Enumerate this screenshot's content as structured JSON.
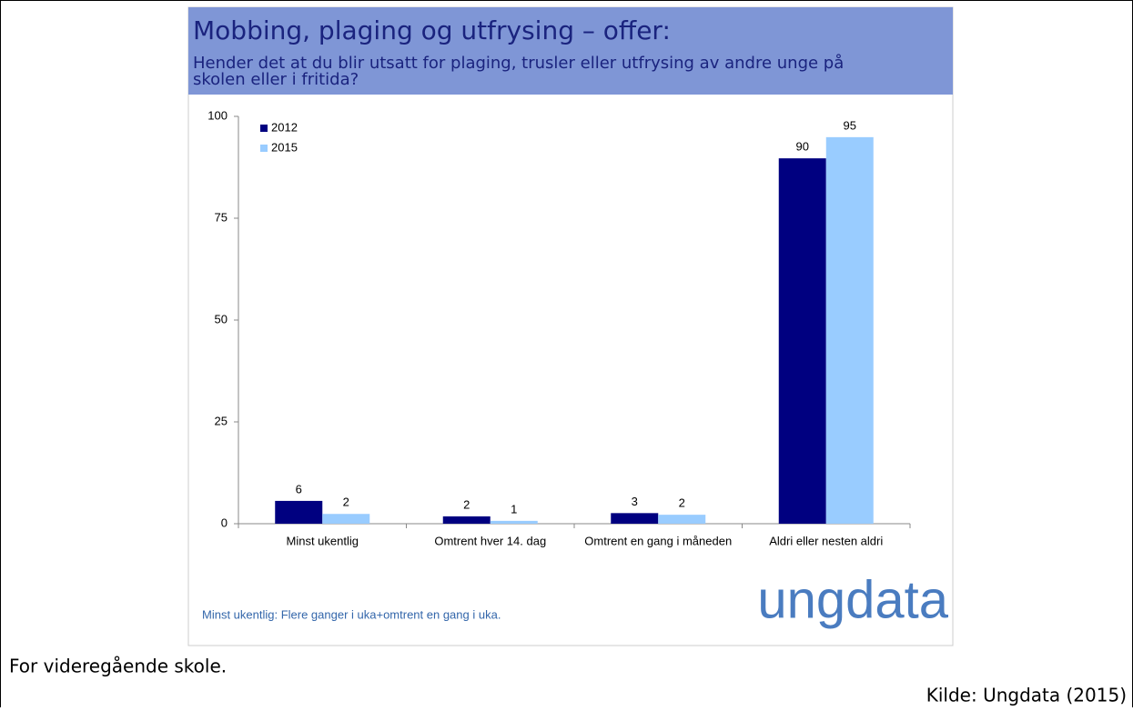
{
  "chart_data": {
    "type": "bar",
    "title": "Mobbing, plaging og utfrysing – offer:",
    "subtitle": [
      "Hender det at du blir utsatt for plaging, trusler eller utfrysing av andre unge på",
      "skolen eller i fritida?"
    ],
    "categories": [
      "Minst ukentlig",
      "Omtrent hver 14. dag",
      "Omtrent en gang i måneden",
      "Aldri eller nesten aldri"
    ],
    "series": [
      {
        "name": "2012",
        "color": "#000080",
        "values": [
          5.6,
          1.8,
          2.6,
          89.7
        ],
        "value_labels": [
          "6",
          "2",
          "3",
          "90"
        ]
      },
      {
        "name": "2015",
        "color": "#99ccff",
        "values": [
          2.4,
          0.7,
          2.2,
          94.9
        ],
        "value_labels": [
          "2",
          "1",
          "2",
          "95"
        ]
      }
    ],
    "ylim": [
      0,
      100
    ],
    "yticks": [
      0,
      25,
      50,
      75,
      100
    ],
    "grid": false,
    "legend": "top-left",
    "annotation": "Minst ukentlig: Flere ganger i uka+omtrent en gang i uka.",
    "logo": "ungdata"
  },
  "caption": "For videregående skole.",
  "source": "Kilde: Ungdata (2015)"
}
